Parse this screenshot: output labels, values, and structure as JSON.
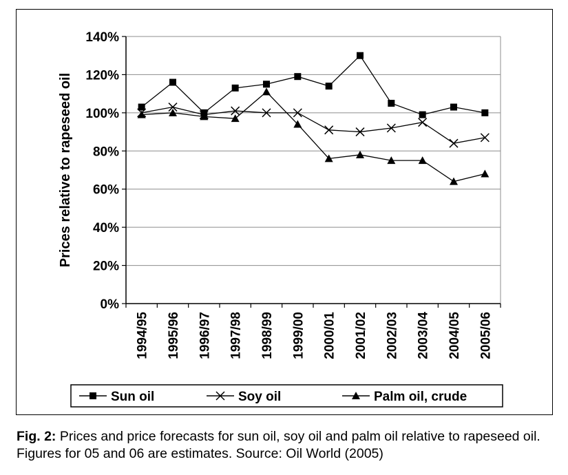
{
  "chart_data": {
    "type": "line",
    "title": "",
    "xlabel": "",
    "ylabel": "Prices relative to rapeseed oil",
    "ylim": [
      0,
      140
    ],
    "yticks": [
      0,
      20,
      40,
      60,
      80,
      100,
      120,
      140
    ],
    "ytick_labels": [
      "0%",
      "20%",
      "40%",
      "60%",
      "80%",
      "100%",
      "120%",
      "140%"
    ],
    "categories": [
      "1994/95",
      "1995/96",
      "1996/97",
      "1997/98",
      "1998/99",
      "1999/00",
      "2000/01",
      "2001/02",
      "2002/03",
      "2003/04",
      "2004/05",
      "2005/06"
    ],
    "grid": "horizontal",
    "legend_position": "bottom",
    "series": [
      {
        "name": "Sun oil",
        "marker": "square",
        "color": "#000000",
        "values": [
          103,
          116,
          100,
          113,
          115,
          119,
          114,
          130,
          105,
          99,
          103,
          100
        ]
      },
      {
        "name": "Soy oil",
        "marker": "x",
        "color": "#000000",
        "values": [
          100,
          103,
          99,
          101,
          100,
          100,
          91,
          90,
          92,
          95,
          84,
          87
        ]
      },
      {
        "name": "Palm oil, crude",
        "marker": "triangle",
        "color": "#000000",
        "values": [
          99,
          100,
          98,
          97,
          111,
          94,
          76,
          78,
          75,
          75,
          64,
          68
        ]
      }
    ]
  },
  "caption": {
    "label": "Fig. 2:",
    "text": " Prices and price forecasts for sun oil, soy oil and palm oil relative to rapeseed oil. Figures for 05 and 06 are estimates. Source: Oil World (2005)"
  }
}
